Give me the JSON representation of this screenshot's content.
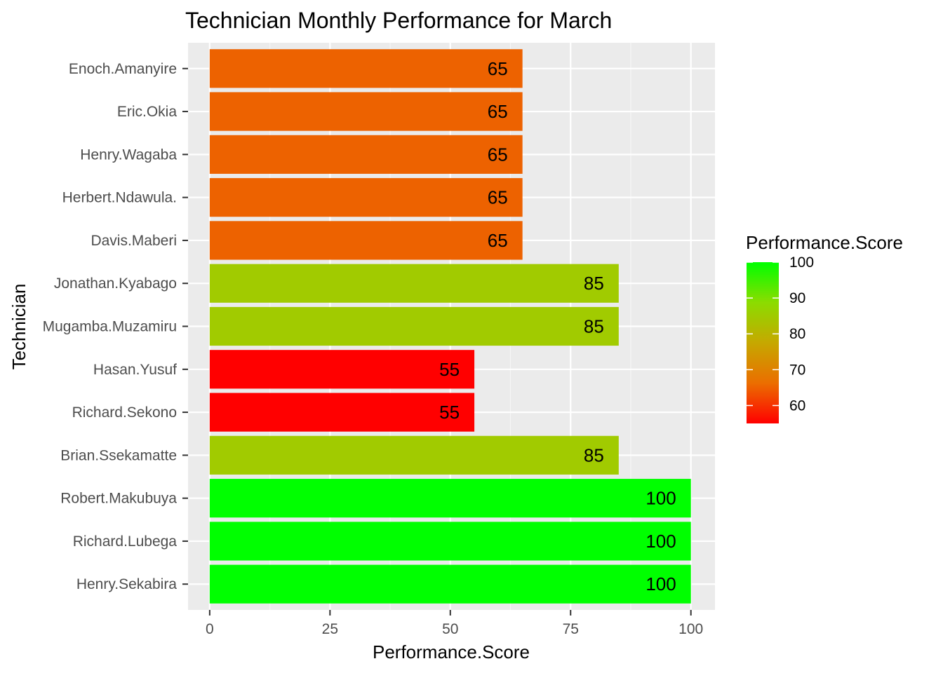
{
  "chart_data": {
    "type": "bar",
    "orientation": "horizontal",
    "title": "Technician Monthly Performance for March",
    "xlabel": "Performance.Score",
    "ylabel": "Technician",
    "xlim": [
      -4.5,
      105
    ],
    "x_ticks": [
      "0",
      "25",
      "50",
      "75",
      "100"
    ],
    "x_tick_values": [
      0,
      25,
      50,
      75,
      100
    ],
    "grid": true,
    "categories": [
      "Enoch.Amanyire",
      "Eric.Okia",
      "Henry.Wagaba",
      "Herbert.Ndawula.",
      "Davis.Maberi",
      "Jonathan.Kyabago",
      "Mugamba.Muzamiru",
      "Hasan.Yusuf",
      "Richard.Sekono",
      "Brian.Ssekamatte",
      "Robert.Makubuya",
      "Richard.Lubega",
      "Henry.Sekabira"
    ],
    "values": [
      65,
      65,
      65,
      65,
      65,
      85,
      85,
      55,
      55,
      85,
      100,
      100,
      100
    ],
    "data_labels": [
      "65",
      "65",
      "65",
      "65",
      "65",
      "85",
      "85",
      "55",
      "55",
      "85",
      "100",
      "100",
      "100"
    ],
    "legend": {
      "title": "Performance.Score",
      "position": "right",
      "ticks": [
        "100",
        "90",
        "80",
        "70",
        "60"
      ],
      "tick_values": [
        100,
        90,
        80,
        70,
        60
      ],
      "range": [
        55,
        100
      ],
      "color_low": "#ff0000",
      "color_high": "#00ff00"
    },
    "colors": {
      "panel_background": "#ebebeb",
      "grid_major": "#ffffff",
      "grid_minor": "#f5f5f5"
    }
  }
}
